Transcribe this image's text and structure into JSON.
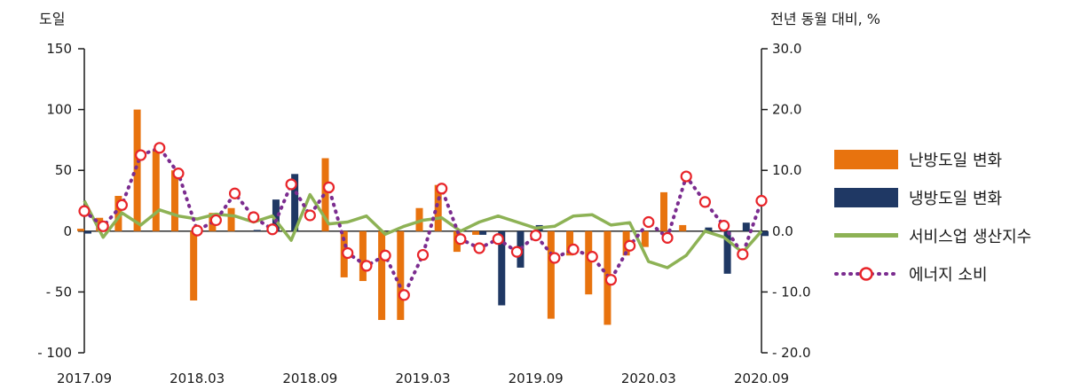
{
  "chart_data": {
    "type": "bar+line",
    "left_axis_title": "도일",
    "right_axis_title": "전년 동월 대비, %",
    "x_tick_labels": [
      "2017.09",
      "2018.03",
      "2018.09",
      "2019.03",
      "2019.09",
      "2020.03",
      "2020.09"
    ],
    "y_left": {
      "min": -100,
      "max": 150,
      "ticks": [
        150,
        100,
        50,
        0,
        -50,
        -100
      ],
      "tick_labels": [
        "150",
        "100",
        "50",
        "0",
        "- 50",
        "- 100"
      ]
    },
    "y_right": {
      "min": -20,
      "max": 30,
      "ticks": [
        30,
        20,
        10,
        0,
        -10,
        -20
      ],
      "tick_labels": [
        "30.0",
        "20.0",
        "10.0",
        "0.0",
        "- 10.0",
        "- 20.0"
      ]
    },
    "categories": [
      "2017.09",
      "2017.10",
      "2017.11",
      "2017.12",
      "2018.01",
      "2018.02",
      "2018.03",
      "2018.04",
      "2018.05",
      "2018.06",
      "2018.07",
      "2018.08",
      "2018.09",
      "2018.10",
      "2018.11",
      "2018.12",
      "2019.01",
      "2019.02",
      "2019.03",
      "2019.04",
      "2019.05",
      "2019.06",
      "2019.07",
      "2019.08",
      "2019.09",
      "2019.10",
      "2019.11",
      "2019.12",
      "2020.01",
      "2020.02",
      "2020.03",
      "2020.04",
      "2020.05",
      "2020.06",
      "2020.07",
      "2020.08",
      "2020.09"
    ],
    "series": [
      {
        "name": "난방도일 변화",
        "type": "bar",
        "axis": "left",
        "color": "#E8730E",
        "values": [
          2,
          11,
          29,
          100,
          67,
          50,
          -57,
          15,
          19,
          0,
          0,
          0,
          0,
          60,
          -38,
          -41,
          -73,
          -73,
          19,
          38,
          -17,
          -3,
          0,
          0,
          0,
          -72,
          -20,
          -52,
          -77,
          -20,
          -13,
          32,
          5,
          0,
          0,
          0,
          0
        ]
      },
      {
        "name": "냉방도일 변화",
        "type": "bar",
        "axis": "left",
        "color": "#1F3864",
        "values": [
          -2,
          0,
          0,
          0,
          0,
          0,
          0,
          0,
          0,
          1,
          26,
          47,
          0,
          0,
          0,
          0,
          0,
          0,
          0,
          0,
          0,
          -3,
          -61,
          -30,
          5,
          0,
          0,
          0,
          0,
          0,
          0,
          0,
          0,
          3,
          -35,
          7,
          -4
        ]
      },
      {
        "name": "서비스업 생산지수",
        "type": "line",
        "axis": "right",
        "color": "#8DB255",
        "values": [
          5.0,
          -1.0,
          3.0,
          1.0,
          3.5,
          2.5,
          2.0,
          2.8,
          2.5,
          1.5,
          2.5,
          -1.5,
          6.0,
          1.2,
          1.5,
          2.5,
          -0.5,
          0.8,
          1.8,
          2.2,
          0.0,
          1.5,
          2.5,
          1.5,
          0.5,
          0.8,
          2.5,
          2.7,
          1.0,
          1.4,
          -5.0,
          -6.0,
          -4.0,
          0.0,
          -1.0,
          -3.5,
          0.0
        ]
      },
      {
        "name": "에너지 소비",
        "type": "line",
        "axis": "right",
        "color": "#7B2C8F",
        "marker": "circle",
        "values": [
          3.3,
          0.8,
          4.3,
          12.5,
          13.7,
          9.5,
          0.1,
          1.8,
          6.2,
          2.3,
          0.3,
          7.7,
          2.6,
          7.2,
          -3.6,
          -5.7,
          -4.0,
          -10.5,
          -3.9,
          7.0,
          -1.3,
          -2.8,
          -1.3,
          -3.4,
          -0.7,
          -4.4,
          -3.0,
          -4.2,
          -8.0,
          -2.4,
          1.5,
          -1.1,
          9.0,
          4.8,
          0.9,
          -3.8,
          5.0
        ]
      }
    ],
    "grid": false,
    "legend_position": "right"
  }
}
